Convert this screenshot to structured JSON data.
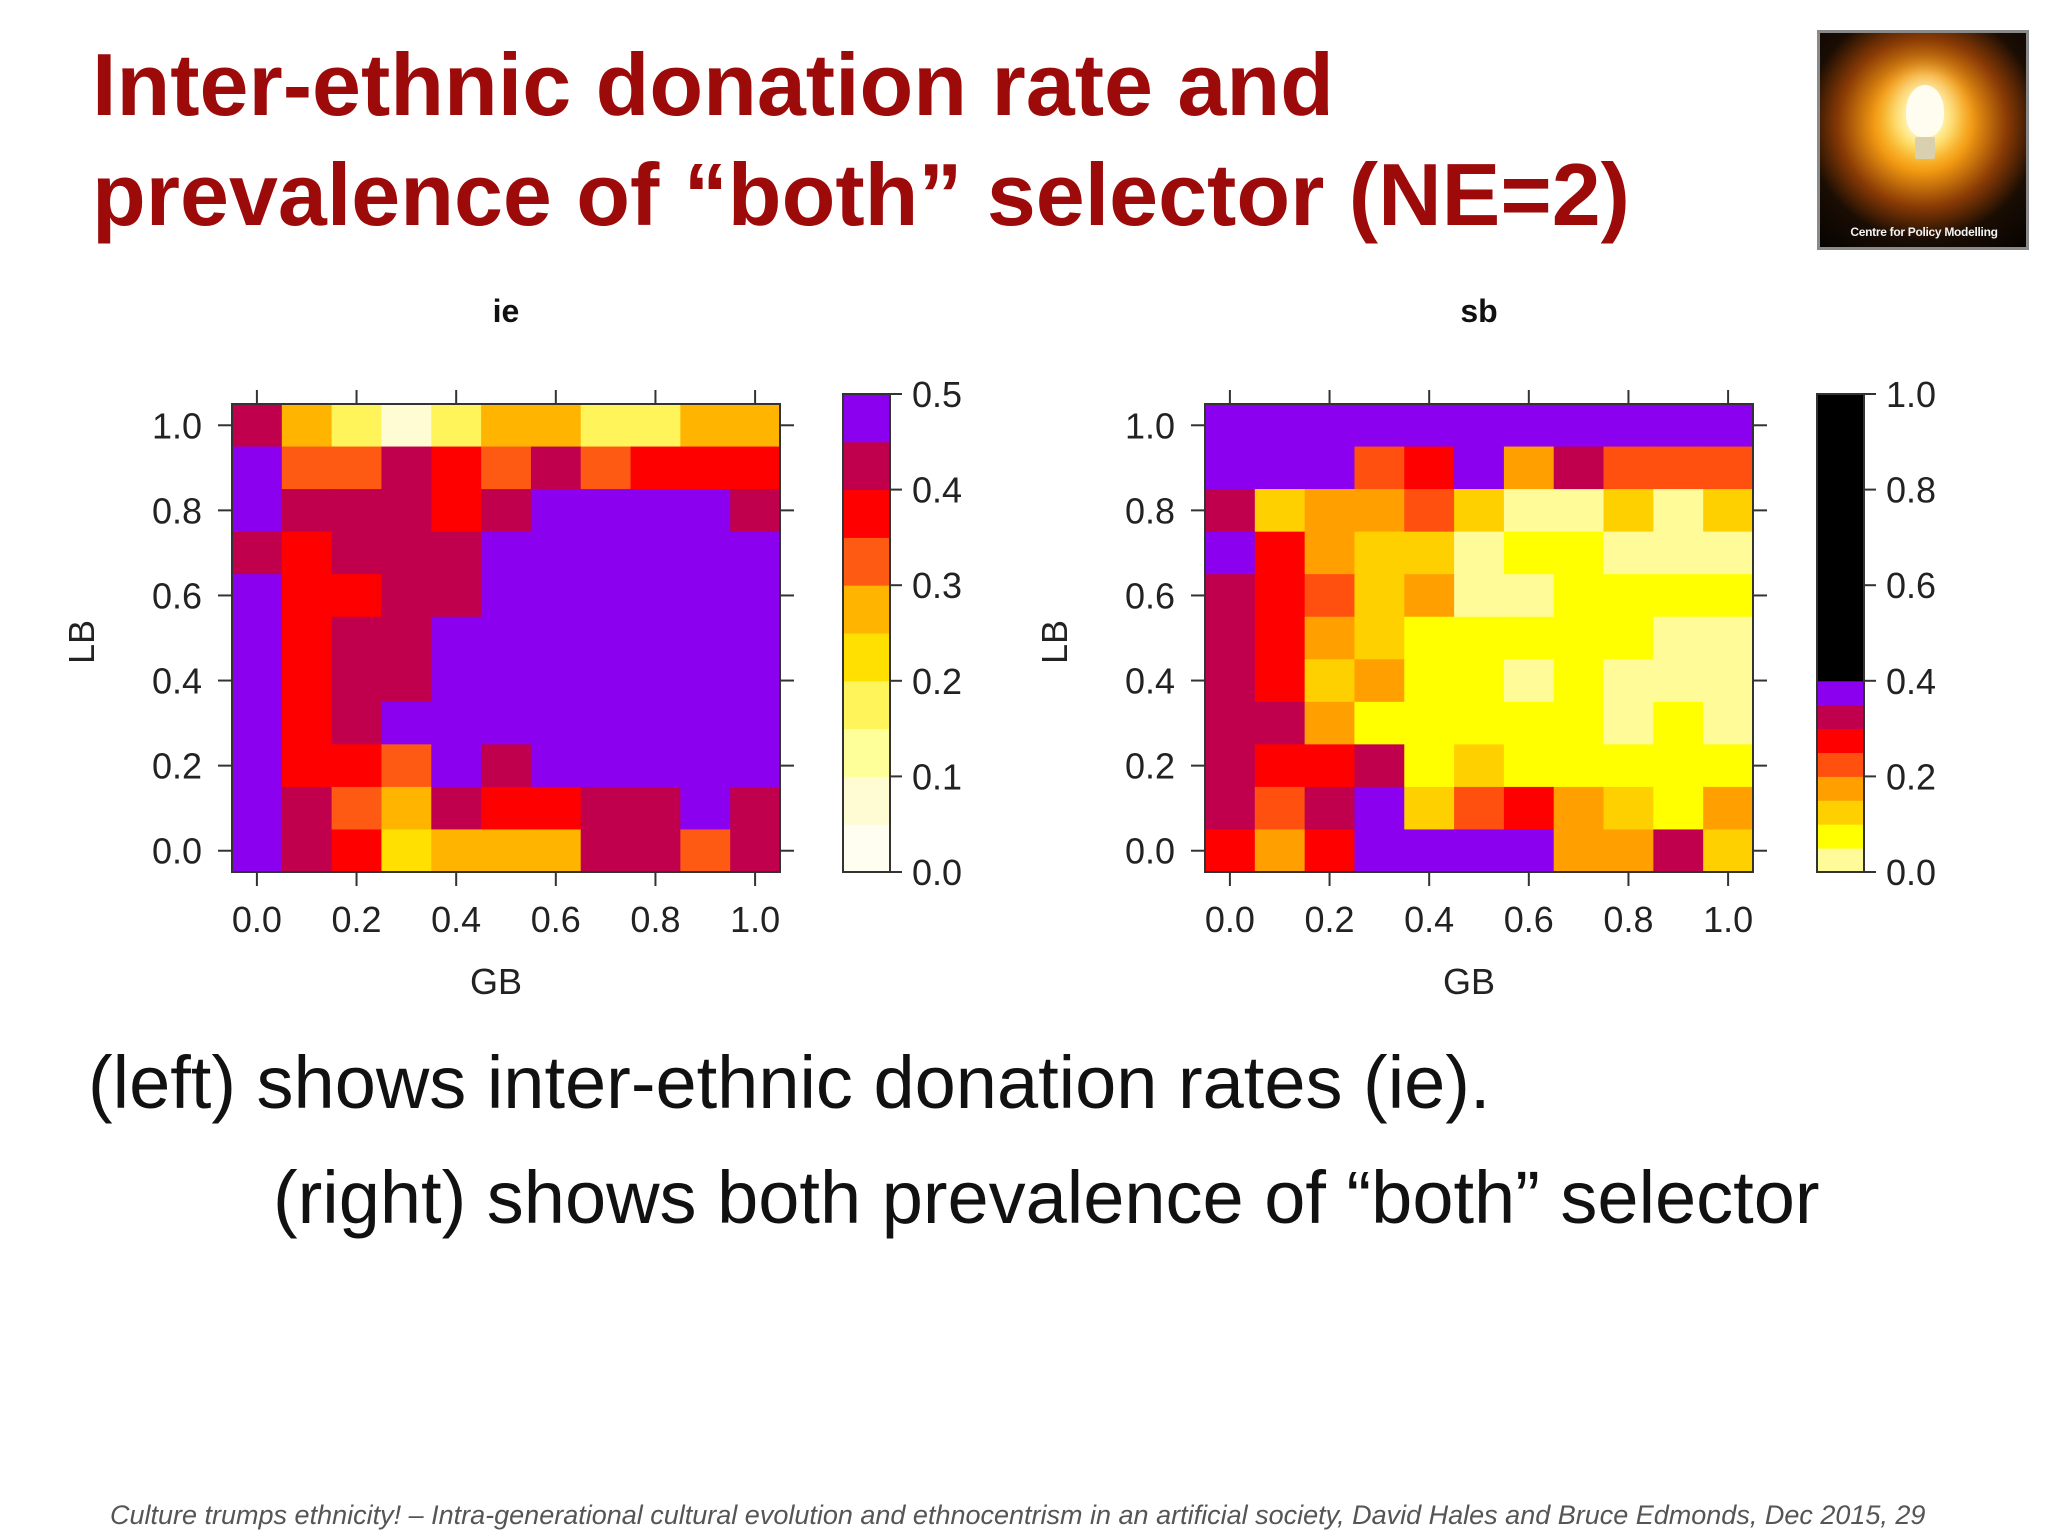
{
  "slide": {
    "title_lines": [
      "Inter-ethnic donation rate and",
      "prevalence of “both” selector (NE=2)"
    ],
    "logo_text": "Centre for Policy Modelling",
    "logo_icon": "lightbulb-icon",
    "caption_left": "(left) shows inter-ethnic donation rates (ie).",
    "caption_right": "(right) shows both prevalence of “both” selector",
    "footer": "Culture trumps ethnicity! – Intra-generational cultural evolution and ethnocentrism in an artificial society, David Hales and Bruce Edmonds, Dec 2015,  29"
  },
  "colors": {
    "title": "#9c0a0a",
    "palette_ie": [
      "#ffffff",
      "#fffef0",
      "#fffbd2",
      "#ffff99",
      "#fff45a",
      "#ffe000",
      "#ffb400",
      "#ff5a14",
      "#ff0000",
      "#c0004d",
      "#8b00ee"
    ],
    "palette_sb": [
      "#ffffff",
      "#fffb99",
      "#ffff00",
      "#ffd000",
      "#ffa000",
      "#ff5010",
      "#ff0000",
      "#c0004d",
      "#8b00ee"
    ]
  },
  "chart_data": [
    {
      "type": "heatmap",
      "title": "ie",
      "xlabel": "GB",
      "ylabel": "LB",
      "x": [
        0.0,
        0.1,
        0.2,
        0.3,
        0.4,
        0.5,
        0.6,
        0.7,
        0.8,
        0.9,
        1.0
      ],
      "y": [
        1.0,
        0.9,
        0.8,
        0.7,
        0.6,
        0.5,
        0.4,
        0.3,
        0.2,
        0.1,
        0.0
      ],
      "xticks": [
        "0.0",
        "0.2",
        "0.4",
        "0.6",
        "0.8",
        "1.0"
      ],
      "yticks": [
        "0.0",
        "0.2",
        "0.4",
        "0.6",
        "0.8",
        "1.0"
      ],
      "colorbar_ticks": [
        "0.0",
        "0.1",
        "0.2",
        "0.3",
        "0.4",
        "0.5"
      ],
      "colorbar_range": [
        0.0,
        0.5
      ],
      "colorbar_levels": 10,
      "values": [
        [
          0.42,
          0.28,
          0.18,
          0.08,
          0.18,
          0.28,
          0.28,
          0.18,
          0.18,
          0.28,
          0.28
        ],
        [
          0.48,
          0.32,
          0.32,
          0.42,
          0.38,
          0.32,
          0.42,
          0.32,
          0.38,
          0.38,
          0.38
        ],
        [
          0.48,
          0.42,
          0.42,
          0.42,
          0.38,
          0.42,
          0.48,
          0.48,
          0.48,
          0.48,
          0.42
        ],
        [
          0.42,
          0.38,
          0.42,
          0.42,
          0.42,
          0.48,
          0.48,
          0.48,
          0.48,
          0.48,
          0.48
        ],
        [
          0.48,
          0.38,
          0.38,
          0.42,
          0.42,
          0.48,
          0.48,
          0.48,
          0.48,
          0.48,
          0.48
        ],
        [
          0.48,
          0.38,
          0.42,
          0.42,
          0.48,
          0.48,
          0.48,
          0.48,
          0.48,
          0.48,
          0.48
        ],
        [
          0.48,
          0.38,
          0.42,
          0.42,
          0.48,
          0.48,
          0.48,
          0.48,
          0.48,
          0.48,
          0.48
        ],
        [
          0.48,
          0.38,
          0.42,
          0.48,
          0.48,
          0.48,
          0.48,
          0.48,
          0.48,
          0.48,
          0.48
        ],
        [
          0.48,
          0.38,
          0.38,
          0.32,
          0.48,
          0.42,
          0.48,
          0.48,
          0.48,
          0.48,
          0.48
        ],
        [
          0.48,
          0.42,
          0.32,
          0.28,
          0.42,
          0.38,
          0.38,
          0.42,
          0.42,
          0.48,
          0.42
        ],
        [
          0.48,
          0.42,
          0.38,
          0.22,
          0.28,
          0.28,
          0.28,
          0.42,
          0.42,
          0.32,
          0.42
        ]
      ]
    },
    {
      "type": "heatmap",
      "title": "sb",
      "xlabel": "GB",
      "ylabel": "LB",
      "x": [
        0.0,
        0.1,
        0.2,
        0.3,
        0.4,
        0.5,
        0.6,
        0.7,
        0.8,
        0.9,
        1.0
      ],
      "y": [
        1.0,
        0.9,
        0.8,
        0.7,
        0.6,
        0.5,
        0.4,
        0.3,
        0.2,
        0.1,
        0.0
      ],
      "xticks": [
        "0.0",
        "0.2",
        "0.4",
        "0.6",
        "0.8",
        "1.0"
      ],
      "yticks": [
        "0.0",
        "0.2",
        "0.4",
        "0.6",
        "0.8",
        "1.0"
      ],
      "colorbar_ticks": [
        "0.0",
        "0.2",
        "0.4",
        "0.6",
        "0.8",
        "1.0"
      ],
      "colorbar_range": [
        0.0,
        1.0
      ],
      "colorbar_levels": [
        0.0,
        0.05,
        0.1,
        0.15,
        0.2,
        0.25,
        0.3,
        0.35,
        0.4,
        1.0
      ],
      "values": [
        [
          0.38,
          0.9,
          0.9,
          0.9,
          0.9,
          0.38,
          0.9,
          0.9,
          0.9,
          0.9,
          0.38
        ],
        [
          0.38,
          0.38,
          0.38,
          0.22,
          0.28,
          0.38,
          0.18,
          0.32,
          0.22,
          0.22,
          0.22
        ],
        [
          0.32,
          0.12,
          0.18,
          0.18,
          0.22,
          0.12,
          0.02,
          0.02,
          0.12,
          0.02,
          0.12
        ],
        [
          0.38,
          0.28,
          0.18,
          0.12,
          0.12,
          0.02,
          0.07,
          0.07,
          0.02,
          0.02,
          0.02
        ],
        [
          0.32,
          0.28,
          0.22,
          0.12,
          0.18,
          0.02,
          0.02,
          0.07,
          0.07,
          0.07,
          0.07
        ],
        [
          0.32,
          0.28,
          0.18,
          0.12,
          0.07,
          0.07,
          0.07,
          0.07,
          0.07,
          0.02,
          0.02
        ],
        [
          0.32,
          0.28,
          0.12,
          0.18,
          0.07,
          0.07,
          0.02,
          0.07,
          0.02,
          0.02,
          0.02
        ],
        [
          0.32,
          0.32,
          0.18,
          0.07,
          0.07,
          0.07,
          0.07,
          0.07,
          0.02,
          0.07,
          0.02
        ],
        [
          0.32,
          0.28,
          0.28,
          0.32,
          0.07,
          0.12,
          0.07,
          0.07,
          0.07,
          0.07,
          0.07
        ],
        [
          0.32,
          0.22,
          0.32,
          0.9,
          0.12,
          0.22,
          0.28,
          0.18,
          0.12,
          0.07,
          0.18
        ],
        [
          0.28,
          0.18,
          0.28,
          0.9,
          0.9,
          0.9,
          0.9,
          0.18,
          0.18,
          0.32,
          0.12
        ]
      ]
    }
  ]
}
